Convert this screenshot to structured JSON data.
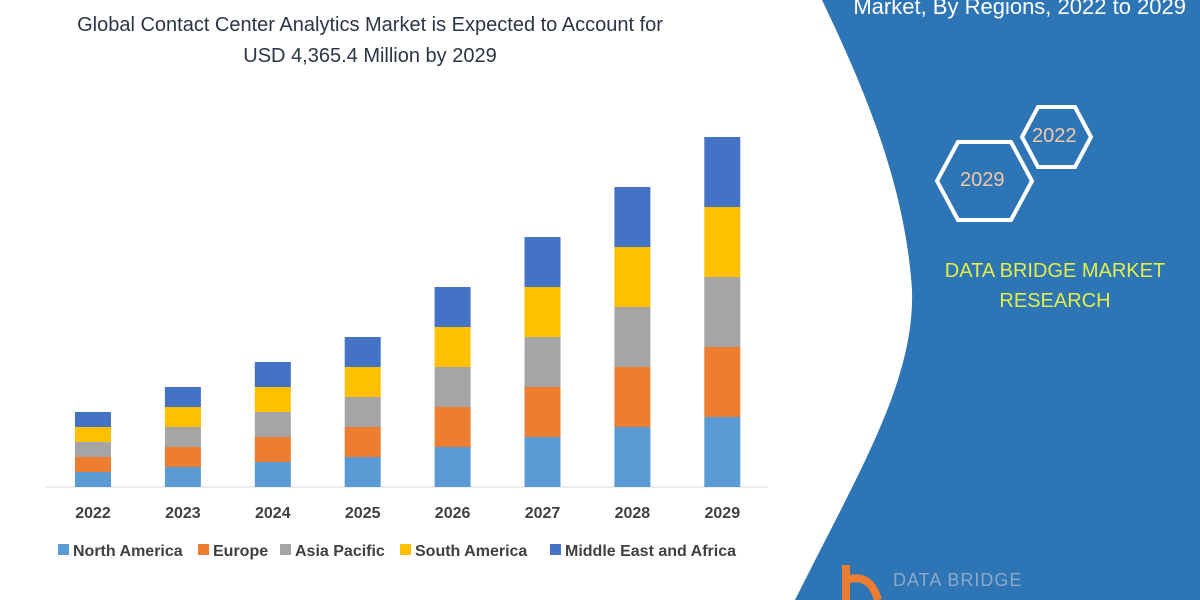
{
  "header": {
    "title_line1": "Global Contact Center Analytics Market is Expected to Account for",
    "title_line2": "USD 4,365.4 Million by 2029"
  },
  "side_panel": {
    "title": "Market, By Regions, 2022 to 2029",
    "hex_start": "2022",
    "hex_end": "2029",
    "brand_line1": "DATA BRIDGE MARKET",
    "brand_line2": "RESEARCH",
    "logo_text": "DATA BRIDGE",
    "panel_color": "#2E75B6",
    "brand_color": "#E2F04A"
  },
  "chart_data": {
    "type": "bar",
    "stacked": true,
    "categories": [
      "2022",
      "2023",
      "2024",
      "2025",
      "2026",
      "2027",
      "2028",
      "2029"
    ],
    "series": [
      {
        "name": "North America",
        "color": "#5B9BD5",
        "values": [
          15,
          20,
          25,
          30,
          40,
          50,
          60,
          70
        ]
      },
      {
        "name": "Europe",
        "color": "#ED7D31",
        "values": [
          15,
          20,
          25,
          30,
          40,
          50,
          60,
          70
        ]
      },
      {
        "name": "Asia Pacific",
        "color": "#A5A5A5",
        "values": [
          15,
          20,
          25,
          30,
          40,
          50,
          60,
          70
        ]
      },
      {
        "name": "South America",
        "color": "#FFC000",
        "values": [
          15,
          20,
          25,
          30,
          40,
          50,
          60,
          70
        ]
      },
      {
        "name": "Middle East and Africa",
        "color": "#4472C4",
        "values": [
          15,
          20,
          25,
          30,
          40,
          50,
          60,
          70
        ]
      }
    ],
    "title": "",
    "xlabel": "",
    "ylabel": "",
    "y_axis_shown": false,
    "grid": false,
    "legend": "bottom"
  }
}
